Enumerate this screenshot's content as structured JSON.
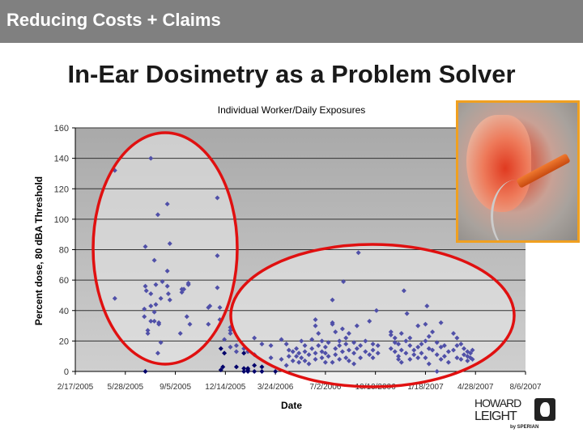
{
  "header": {
    "title": "Reducing Costs + Claims",
    "background": "#808080"
  },
  "slide": {
    "title": "In-Ear Dosimetry as a Problem Solver"
  },
  "logo": {
    "line1": "HOWARD",
    "line2": "LEIGHT",
    "sub": "by SPERIAN"
  },
  "photo": {
    "description_icon": "in-ear-dosimeter-photo",
    "border_color": "#f0a020"
  },
  "chart_data": {
    "type": "scatter",
    "title": "Individual Worker/Daily Exposures",
    "xlabel": "Date",
    "ylabel": "Percent dose, 80 dBA Threshold",
    "xlim": [
      "2005-02-17",
      "2007-08-06"
    ],
    "ylim": [
      0,
      160
    ],
    "x_tick_labels": [
      "2/17/2005",
      "5/28/2005",
      "9/5/2005",
      "12/14/2005",
      "3/24/2006",
      "7/2/2006",
      "10/10/2006",
      "1/18/2007",
      "4/28/2007",
      "8/6/2007"
    ],
    "y_tick_labels": [
      "0",
      "20",
      "40",
      "60",
      "80",
      "100",
      "120",
      "140",
      "160"
    ],
    "grid": "horizontal",
    "marker_color": "#5050a8",
    "dark_marker_color": "#00006a",
    "annotations": [
      {
        "shape": "ellipse",
        "color": "#e01010",
        "around": "2005 high exposures"
      },
      {
        "shape": "ellipse",
        "color": "#e01010",
        "around": "2006-2007 reduced exposures"
      }
    ],
    "series": [
      {
        "color": "#5050a8",
        "points": [
          [
            "2005-05-07",
            132
          ],
          [
            "2005-05-07",
            48
          ],
          [
            "2005-07-05",
            41
          ],
          [
            "2005-07-05",
            36
          ],
          [
            "2005-07-07",
            82
          ],
          [
            "2005-07-07",
            56
          ],
          [
            "2005-07-09",
            53
          ],
          [
            "2005-07-12",
            27
          ],
          [
            "2005-07-12",
            25
          ],
          [
            "2005-07-18",
            140
          ],
          [
            "2005-07-18",
            51
          ],
          [
            "2005-07-18",
            43
          ],
          [
            "2005-07-18",
            33
          ],
          [
            "2005-07-25",
            73
          ],
          [
            "2005-07-25",
            39
          ],
          [
            "2005-07-25",
            33
          ],
          [
            "2005-07-28",
            57
          ],
          [
            "2005-07-28",
            44
          ],
          [
            "2005-08-01",
            103
          ],
          [
            "2005-08-01",
            12
          ],
          [
            "2005-08-03",
            31
          ],
          [
            "2005-08-03",
            32
          ],
          [
            "2005-08-07",
            48
          ],
          [
            "2005-08-07",
            19
          ],
          [
            "2005-08-10",
            59
          ],
          [
            "2005-08-20",
            110
          ],
          [
            "2005-08-20",
            56
          ],
          [
            "2005-08-20",
            66
          ],
          [
            "2005-08-22",
            51
          ],
          [
            "2005-08-25",
            84
          ],
          [
            "2005-08-25",
            47
          ],
          [
            "2005-09-15",
            25
          ],
          [
            "2005-09-18",
            54
          ],
          [
            "2005-09-18",
            52
          ],
          [
            "2005-09-22",
            54
          ],
          [
            "2005-09-28",
            36
          ],
          [
            "2005-10-01",
            58
          ],
          [
            "2005-10-01",
            57
          ],
          [
            "2005-10-04",
            31
          ],
          [
            "2005-11-10",
            42
          ],
          [
            "2005-11-10",
            31
          ],
          [
            "2005-11-13",
            43
          ],
          [
            "2005-11-28",
            114
          ],
          [
            "2005-11-28",
            76
          ],
          [
            "2005-11-28",
            55
          ],
          [
            "2005-12-03",
            42
          ],
          [
            "2005-12-03",
            34
          ],
          [
            "2005-12-12",
            21
          ],
          [
            "2005-12-24",
            29
          ],
          [
            "2005-12-24",
            27
          ],
          [
            "2005-12-24",
            25
          ],
          [
            "2005-12-24",
            16
          ],
          [
            "2006-01-05",
            17
          ],
          [
            "2006-01-05",
            13
          ],
          [
            "2006-01-20",
            15
          ],
          [
            "2006-01-28",
            13
          ],
          [
            "2006-02-10",
            22
          ],
          [
            "2006-02-10",
            11
          ],
          [
            "2006-02-25",
            18
          ],
          [
            "2006-03-15",
            9
          ],
          [
            "2006-03-15",
            17
          ],
          [
            "2006-04-05",
            21
          ],
          [
            "2006-04-05",
            8
          ],
          [
            "2006-04-15",
            18
          ],
          [
            "2006-04-15",
            4
          ],
          [
            "2006-04-20",
            14
          ],
          [
            "2006-04-20",
            10
          ],
          [
            "2006-04-28",
            13
          ],
          [
            "2006-04-28",
            7
          ],
          [
            "2006-05-05",
            10
          ],
          [
            "2006-05-05",
            15
          ],
          [
            "2006-05-10",
            12
          ],
          [
            "2006-05-10",
            6
          ],
          [
            "2006-05-15",
            20
          ],
          [
            "2006-05-15",
            9
          ],
          [
            "2006-05-22",
            13
          ],
          [
            "2006-05-22",
            7
          ],
          [
            "2006-05-22",
            17
          ],
          [
            "2006-05-30",
            11
          ],
          [
            "2006-05-30",
            5
          ],
          [
            "2006-06-05",
            15
          ],
          [
            "2006-06-05",
            21
          ],
          [
            "2006-06-12",
            34
          ],
          [
            "2006-06-12",
            30
          ],
          [
            "2006-06-12",
            12
          ],
          [
            "2006-06-12",
            8
          ],
          [
            "2006-06-18",
            25
          ],
          [
            "2006-06-18",
            17
          ],
          [
            "2006-06-25",
            20
          ],
          [
            "2006-06-25",
            13
          ],
          [
            "2006-06-25",
            9
          ],
          [
            "2006-07-02",
            16
          ],
          [
            "2006-07-02",
            12
          ],
          [
            "2006-07-02",
            6
          ],
          [
            "2006-07-08",
            19
          ],
          [
            "2006-07-08",
            10
          ],
          [
            "2006-07-16",
            47
          ],
          [
            "2006-07-16",
            32
          ],
          [
            "2006-07-16",
            31
          ],
          [
            "2006-07-16",
            6
          ],
          [
            "2006-07-22",
            26
          ],
          [
            "2006-07-22",
            15
          ],
          [
            "2006-07-22",
            11
          ],
          [
            "2006-07-30",
            20
          ],
          [
            "2006-07-30",
            17
          ],
          [
            "2006-07-30",
            8
          ],
          [
            "2006-08-07",
            59
          ],
          [
            "2006-08-05",
            28
          ],
          [
            "2006-08-05",
            13
          ],
          [
            "2006-08-12",
            22
          ],
          [
            "2006-08-12",
            18
          ],
          [
            "2006-08-12",
            9
          ],
          [
            "2006-08-18",
            25
          ],
          [
            "2006-08-18",
            14
          ],
          [
            "2006-08-18",
            7
          ],
          [
            "2006-08-28",
            19
          ],
          [
            "2006-08-28",
            12
          ],
          [
            "2006-08-28",
            5
          ],
          [
            "2006-09-06",
            78
          ],
          [
            "2006-09-03",
            30
          ],
          [
            "2006-09-03",
            15
          ],
          [
            "2006-09-10",
            9
          ],
          [
            "2006-09-10",
            17
          ],
          [
            "2006-09-20",
            13
          ],
          [
            "2006-09-20",
            20
          ],
          [
            "2006-09-28",
            33
          ],
          [
            "2006-09-28",
            11
          ],
          [
            "2006-10-05",
            14
          ],
          [
            "2006-10-05",
            9
          ],
          [
            "2006-10-05",
            18
          ],
          [
            "2006-10-12",
            40
          ],
          [
            "2006-10-15",
            17
          ],
          [
            "2006-10-15",
            12
          ],
          [
            "2006-11-10",
            24
          ],
          [
            "2006-11-10",
            26
          ],
          [
            "2006-11-10",
            15
          ],
          [
            "2006-11-18",
            22
          ],
          [
            "2006-11-18",
            19
          ],
          [
            "2006-11-18",
            13
          ],
          [
            "2006-11-25",
            18
          ],
          [
            "2006-11-25",
            10
          ],
          [
            "2006-11-25",
            8
          ],
          [
            "2006-12-01",
            25
          ],
          [
            "2006-12-01",
            14
          ],
          [
            "2006-12-01",
            6
          ],
          [
            "2006-12-06",
            53
          ],
          [
            "2006-12-12",
            38
          ],
          [
            "2006-12-10",
            20
          ],
          [
            "2006-12-10",
            12
          ],
          [
            "2006-12-18",
            17
          ],
          [
            "2006-12-18",
            8
          ],
          [
            "2006-12-18",
            22
          ],
          [
            "2006-12-26",
            14
          ],
          [
            "2006-12-26",
            11
          ],
          [
            "2007-01-03",
            30
          ],
          [
            "2007-01-03",
            16
          ],
          [
            "2007-01-03",
            9
          ],
          [
            "2007-01-10",
            18
          ],
          [
            "2007-01-10",
            12
          ],
          [
            "2007-01-18",
            31
          ],
          [
            "2007-01-18",
            20
          ],
          [
            "2007-01-18",
            9
          ],
          [
            "2007-01-21",
            43
          ],
          [
            "2007-01-25",
            23
          ],
          [
            "2007-01-25",
            15
          ],
          [
            "2007-01-25",
            5
          ],
          [
            "2007-02-01",
            26
          ],
          [
            "2007-02-01",
            14
          ],
          [
            "2007-02-10",
            19
          ],
          [
            "2007-02-10",
            11
          ],
          [
            "2007-02-10",
            0
          ],
          [
            "2007-02-18",
            32
          ],
          [
            "2007-02-18",
            16
          ],
          [
            "2007-02-18",
            8
          ],
          [
            "2007-02-25",
            17
          ],
          [
            "2007-02-25",
            10
          ],
          [
            "2007-03-05",
            13
          ],
          [
            "2007-03-05",
            6
          ],
          [
            "2007-03-15",
            25
          ],
          [
            "2007-03-15",
            14
          ],
          [
            "2007-03-22",
            22
          ],
          [
            "2007-03-22",
            17
          ],
          [
            "2007-03-22",
            9
          ],
          [
            "2007-03-30",
            18
          ],
          [
            "2007-03-30",
            8
          ],
          [
            "2007-04-05",
            11
          ],
          [
            "2007-04-05",
            15
          ],
          [
            "2007-04-12",
            13
          ],
          [
            "2007-04-12",
            7
          ],
          [
            "2007-04-12",
            10
          ],
          [
            "2007-04-18",
            9
          ],
          [
            "2007-04-18",
            12
          ],
          [
            "2007-04-22",
            14
          ],
          [
            "2007-04-22",
            8
          ]
        ]
      },
      {
        "color": "#00006a",
        "points": [
          [
            "2005-07-07",
            0
          ],
          [
            "2005-12-05",
            15
          ],
          [
            "2005-12-05",
            1
          ],
          [
            "2005-12-09",
            3
          ],
          [
            "2005-12-12",
            12
          ],
          [
            "2006-01-05",
            3
          ],
          [
            "2006-01-20",
            12
          ],
          [
            "2006-01-20",
            0
          ],
          [
            "2006-01-20",
            2
          ],
          [
            "2006-01-28",
            1
          ],
          [
            "2006-01-28",
            0
          ],
          [
            "2006-01-28",
            2
          ],
          [
            "2006-02-10",
            4
          ],
          [
            "2006-02-10",
            0
          ],
          [
            "2006-02-25",
            3
          ],
          [
            "2006-02-25",
            0
          ],
          [
            "2006-03-24",
            0
          ]
        ]
      }
    ]
  }
}
